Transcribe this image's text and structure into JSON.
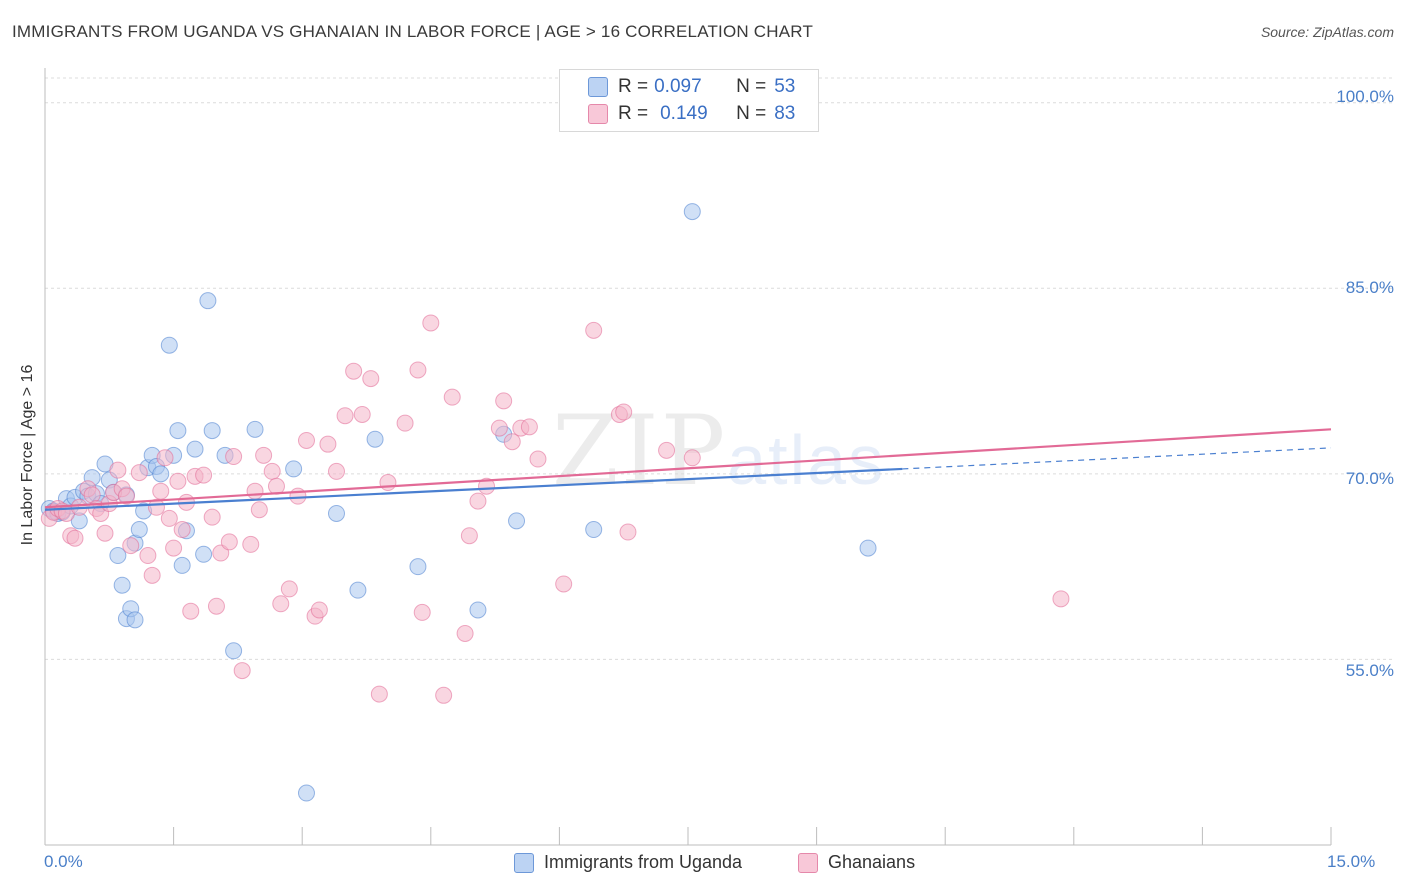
{
  "title": "IMMIGRANTS FROM UGANDA VS GHANAIAN IN LABOR FORCE | AGE > 16 CORRELATION CHART",
  "source": "Source: ZipAtlas.com",
  "watermark": {
    "a": "ZIP",
    "b": "atlas"
  },
  "legend": {
    "rows": [
      {
        "r_label": "R =",
        "r_value": "0.097",
        "n_label": "N =",
        "n_value": "53"
      },
      {
        "r_label": "R =",
        "r_value": "0.149",
        "n_label": "N =",
        "n_value": "83"
      }
    ]
  },
  "bottom_legend": [
    "Immigrants from Uganda",
    "Ghanaians"
  ],
  "chart_data": {
    "type": "scatter",
    "title": "IMMIGRANTS FROM UGANDA VS GHANAIAN IN LABOR FORCE | AGE > 16 CORRELATION CHART",
    "xlabel": "",
    "ylabel": "In Labor Force | Age > 16",
    "xlim": [
      0,
      15
    ],
    "ylim": [
      40,
      102
    ],
    "x_tick_labels": [
      "0.0%",
      "15.0%"
    ],
    "y_ticks": [
      55,
      70,
      85,
      100
    ],
    "y_tick_labels": [
      "55.0%",
      "70.0%",
      "85.0%",
      "100.0%"
    ],
    "colors": {
      "uganda": "#4a7fd0",
      "ghana": "#e26a96",
      "uganda_fill": "#a9c6ee",
      "ghana_fill": "#f4b4c9"
    },
    "series": [
      {
        "name": "Immigrants from Uganda",
        "color": "#4a7fd0",
        "points": [
          [
            0.05,
            67.2
          ],
          [
            0.1,
            67.0
          ],
          [
            0.15,
            66.8
          ],
          [
            0.2,
            66.9
          ],
          [
            0.25,
            68.0
          ],
          [
            0.3,
            67.4
          ],
          [
            0.35,
            68.1
          ],
          [
            0.4,
            66.2
          ],
          [
            0.45,
            68.6
          ],
          [
            0.5,
            68.2
          ],
          [
            0.55,
            69.7
          ],
          [
            0.6,
            68.4
          ],
          [
            0.65,
            67.6
          ],
          [
            0.7,
            70.8
          ],
          [
            0.75,
            69.5
          ],
          [
            0.8,
            68.5
          ],
          [
            0.85,
            63.4
          ],
          [
            0.9,
            61.0
          ],
          [
            0.95,
            68.3
          ],
          [
            1.05,
            64.4
          ],
          [
            1.1,
            65.5
          ],
          [
            1.15,
            67.0
          ],
          [
            1.2,
            70.5
          ],
          [
            1.25,
            71.5
          ],
          [
            1.3,
            70.6
          ],
          [
            1.35,
            70.0
          ],
          [
            1.45,
            80.4
          ],
          [
            1.5,
            71.5
          ],
          [
            1.55,
            73.5
          ],
          [
            1.6,
            62.6
          ],
          [
            1.65,
            65.4
          ],
          [
            1.75,
            72.0
          ],
          [
            1.85,
            63.5
          ],
          [
            1.95,
            73.5
          ],
          [
            2.1,
            71.5
          ],
          [
            2.2,
            55.7
          ],
          [
            2.45,
            73.6
          ],
          [
            2.9,
            70.4
          ],
          [
            3.05,
            44.2
          ],
          [
            3.4,
            66.8
          ],
          [
            3.65,
            60.6
          ],
          [
            3.85,
            72.8
          ],
          [
            4.35,
            62.5
          ],
          [
            5.05,
            59.0
          ],
          [
            5.35,
            73.2
          ],
          [
            5.5,
            66.2
          ],
          [
            6.4,
            65.5
          ],
          [
            7.55,
            91.2
          ],
          [
            9.6,
            64.0
          ],
          [
            1.9,
            84.0
          ],
          [
            0.95,
            58.3
          ],
          [
            1.0,
            59.1
          ],
          [
            1.05,
            58.2
          ]
        ]
      },
      {
        "name": "Ghanaians",
        "color": "#e26a96",
        "points": [
          [
            0.05,
            66.4
          ],
          [
            0.1,
            66.9
          ],
          [
            0.15,
            67.2
          ],
          [
            0.2,
            67.0
          ],
          [
            0.25,
            66.8
          ],
          [
            0.3,
            65.0
          ],
          [
            0.4,
            67.3
          ],
          [
            0.5,
            68.8
          ],
          [
            0.55,
            68.3
          ],
          [
            0.6,
            67.2
          ],
          [
            0.65,
            66.8
          ],
          [
            0.7,
            65.2
          ],
          [
            0.75,
            67.6
          ],
          [
            0.8,
            68.5
          ],
          [
            0.85,
            70.3
          ],
          [
            0.9,
            68.8
          ],
          [
            0.95,
            68.2
          ],
          [
            1.0,
            64.2
          ],
          [
            1.1,
            70.1
          ],
          [
            1.2,
            63.4
          ],
          [
            1.3,
            67.3
          ],
          [
            1.35,
            68.6
          ],
          [
            1.4,
            71.3
          ],
          [
            1.45,
            66.4
          ],
          [
            1.55,
            69.4
          ],
          [
            1.65,
            67.7
          ],
          [
            1.75,
            69.8
          ],
          [
            1.85,
            69.9
          ],
          [
            1.95,
            66.5
          ],
          [
            2.0,
            59.3
          ],
          [
            2.05,
            63.6
          ],
          [
            2.15,
            64.5
          ],
          [
            2.2,
            71.4
          ],
          [
            2.3,
            54.1
          ],
          [
            2.4,
            64.3
          ],
          [
            2.45,
            68.6
          ],
          [
            2.5,
            67.1
          ],
          [
            2.55,
            71.5
          ],
          [
            2.65,
            70.2
          ],
          [
            2.75,
            59.5
          ],
          [
            2.85,
            60.7
          ],
          [
            2.95,
            68.2
          ],
          [
            3.05,
            72.7
          ],
          [
            3.15,
            58.5
          ],
          [
            3.3,
            72.4
          ],
          [
            3.4,
            70.2
          ],
          [
            3.5,
            74.7
          ],
          [
            3.6,
            78.3
          ],
          [
            3.7,
            74.8
          ],
          [
            3.8,
            77.7
          ],
          [
            3.9,
            52.2
          ],
          [
            4.0,
            69.3
          ],
          [
            4.2,
            74.1
          ],
          [
            4.35,
            78.4
          ],
          [
            4.4,
            58.8
          ],
          [
            4.5,
            82.2
          ],
          [
            4.65,
            52.1
          ],
          [
            4.75,
            76.2
          ],
          [
            4.9,
            57.1
          ],
          [
            4.95,
            65.0
          ],
          [
            5.05,
            67.8
          ],
          [
            5.15,
            69.0
          ],
          [
            5.3,
            73.7
          ],
          [
            5.35,
            75.9
          ],
          [
            5.45,
            72.6
          ],
          [
            5.55,
            73.7
          ],
          [
            5.65,
            73.8
          ],
          [
            5.75,
            71.2
          ],
          [
            6.05,
            61.1
          ],
          [
            6.4,
            81.6
          ],
          [
            6.7,
            74.8
          ],
          [
            6.75,
            75.0
          ],
          [
            6.8,
            65.3
          ],
          [
            7.25,
            71.9
          ],
          [
            7.55,
            71.3
          ],
          [
            11.85,
            59.9
          ],
          [
            1.5,
            64.0
          ],
          [
            1.7,
            58.9
          ],
          [
            3.2,
            59.0
          ],
          [
            0.35,
            64.8
          ],
          [
            1.25,
            61.8
          ],
          [
            1.6,
            65.5
          ],
          [
            2.7,
            69.0
          ]
        ]
      }
    ],
    "trend_lines": [
      {
        "series": "Immigrants from Uganda",
        "x0": 0.0,
        "y0": 67.1,
        "x1": 10.0,
        "y1": 70.4,
        "dashed_to": 15.0,
        "dashed_y": 72.1
      },
      {
        "series": "Ghanaians",
        "x0": 0.0,
        "y0": 67.3,
        "x1": 15.0,
        "y1": 73.6
      }
    ]
  }
}
